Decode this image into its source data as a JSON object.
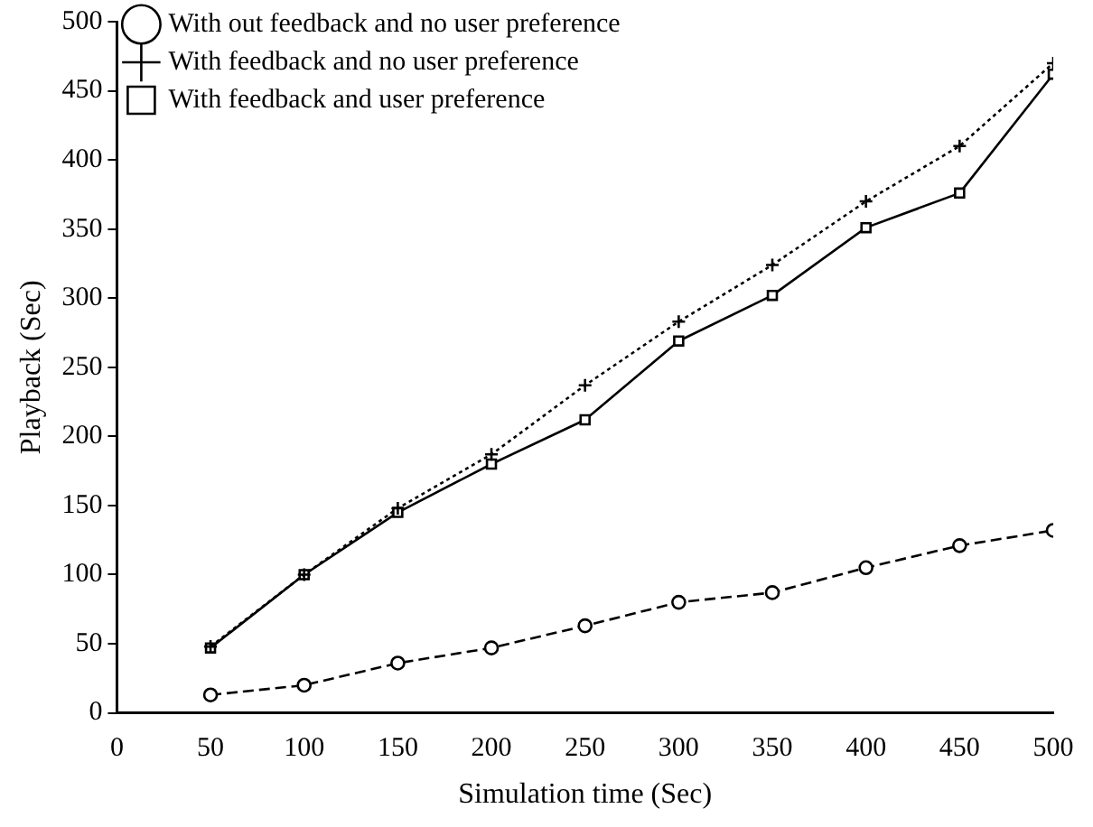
{
  "chart_data": {
    "type": "line",
    "xlabel": "Simulation time (Sec)",
    "ylabel": "Playback (Sec)",
    "x": [
      50,
      100,
      150,
      200,
      250,
      300,
      350,
      400,
      450,
      500
    ],
    "series": [
      {
        "name": "With out feedback and no user preference",
        "color": "#000000",
        "marker": "circle",
        "line_style": "dashed",
        "values": [
          13,
          20,
          36,
          47,
          63,
          80,
          87,
          105,
          121,
          132
        ]
      },
      {
        "name": "With feedback and no user preference",
        "color": "#000000",
        "marker": "cross",
        "line_style": "dotted",
        "values": [
          48,
          100,
          148,
          187,
          237,
          283,
          324,
          370,
          410,
          470
        ]
      },
      {
        "name": "With feedback and user preference",
        "color": "#000000",
        "marker": "square",
        "line_style": "solid",
        "values": [
          47,
          100,
          145,
          180,
          212,
          269,
          302,
          351,
          376,
          462
        ]
      }
    ],
    "xlim": [
      0,
      500
    ],
    "xticks": [
      0,
      50,
      100,
      150,
      200,
      250,
      300,
      350,
      400,
      450,
      500
    ],
    "ylim": [
      0,
      500
    ],
    "yticks": [
      0,
      50,
      100,
      150,
      200,
      250,
      300,
      350,
      400,
      450,
      500
    ],
    "grid": false,
    "legend": "top left"
  }
}
